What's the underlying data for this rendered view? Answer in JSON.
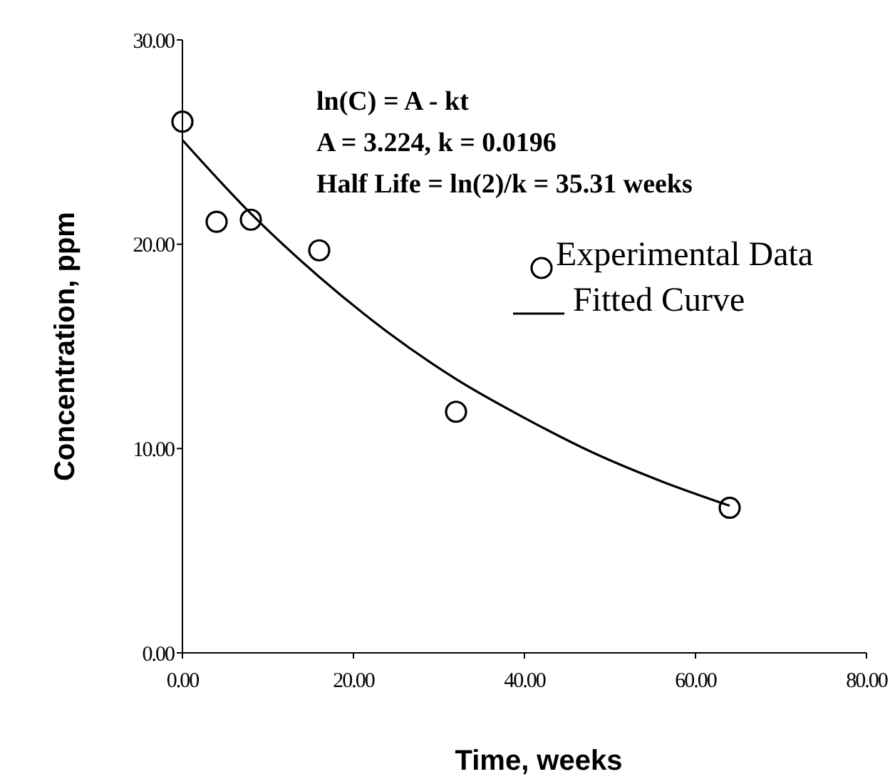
{
  "chart_data": {
    "type": "scatter",
    "xlabel": "Time, weeks",
    "ylabel": "Concentration, ppm",
    "xlim": [
      0,
      80
    ],
    "ylim": [
      0,
      30
    ],
    "xticks": [
      {
        "value": 0,
        "label": "0.00"
      },
      {
        "value": 20,
        "label": "20.00"
      },
      {
        "value": 40,
        "label": "40.00"
      },
      {
        "value": 60,
        "label": "60.00"
      },
      {
        "value": 80,
        "label": "80.00"
      }
    ],
    "yticks": [
      {
        "value": 0,
        "label": "0.00"
      },
      {
        "value": 10,
        "label": "10.00"
      },
      {
        "value": 20,
        "label": "20.00"
      },
      {
        "value": 30,
        "label": "30.00"
      }
    ],
    "annotations": [
      "ln(C) = A - kt",
      "A = 3.224,  k = 0.0196",
      "Half Life = ln(2)/k = 35.31 weeks"
    ],
    "legend": "top right",
    "grid": false,
    "series": [
      {
        "name": "Experimental Data",
        "marker": "circle",
        "color": "#000000",
        "x": [
          0,
          4,
          8,
          16,
          32,
          64
        ],
        "values": [
          26.0,
          21.1,
          21.2,
          19.7,
          11.8,
          7.1
        ]
      },
      {
        "name": "Fitted Curve",
        "type": "line",
        "line_style": "solid",
        "color": "#000000",
        "x": [
          0,
          8,
          16,
          24,
          32,
          40,
          48,
          56,
          64
        ],
        "values": [
          25.1,
          21.5,
          18.4,
          15.7,
          13.4,
          11.5,
          9.8,
          8.4,
          7.2
        ]
      }
    ]
  }
}
